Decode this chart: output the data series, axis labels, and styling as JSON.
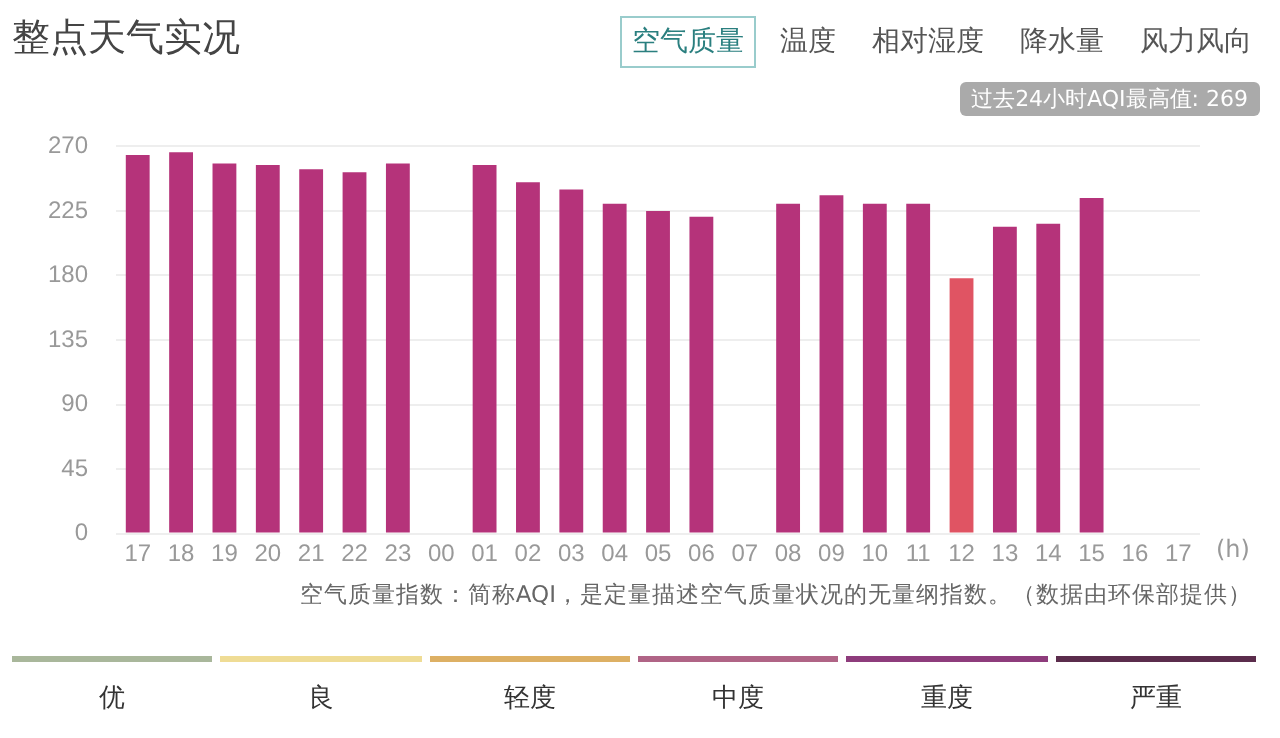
{
  "chart_data": {
    "type": "bar",
    "title": "整点天气实况",
    "xlabel": "(h)",
    "categories": [
      "17",
      "18",
      "19",
      "20",
      "21",
      "22",
      "23",
      "00",
      "01",
      "02",
      "03",
      "04",
      "05",
      "06",
      "07",
      "08",
      "09",
      "10",
      "11",
      "12",
      "13",
      "14",
      "15",
      "16",
      "17"
    ],
    "values": [
      264,
      266,
      258,
      257,
      254,
      252,
      258,
      null,
      257,
      245,
      240,
      230,
      225,
      221,
      null,
      230,
      236,
      230,
      230,
      178,
      214,
      216,
      234,
      null,
      null
    ],
    "colors": [
      "#b5337a",
      "#b5337a",
      "#b5337a",
      "#b5337a",
      "#b5337a",
      "#b5337a",
      "#b5337a",
      "#b5337a",
      "#b5337a",
      "#b5337a",
      "#b5337a",
      "#b5337a",
      "#b5337a",
      "#b5337a",
      "#b5337a",
      "#b5337a",
      "#b5337a",
      "#b5337a",
      "#b5337a",
      "#e05463",
      "#b5337a",
      "#b5337a",
      "#b5337a",
      "#b5337a",
      "#b5337a"
    ],
    "ylim": [
      0,
      270
    ],
    "yticks": [
      0,
      45,
      90,
      135,
      180,
      225,
      270
    ],
    "grid": "y",
    "legend": false,
    "annotations": [
      "空气质量",
      "温度",
      "相对湿度",
      "降水量",
      "风力风向",
      "过去24小时AQI最高值: 269",
      "空气质量指数：简称AQI，是定量描述空气质量状况的无量纲指数。（数据由环保部提供）",
      "优",
      "良",
      "轻度",
      "中度",
      "重度",
      "严重"
    ]
  }
}
